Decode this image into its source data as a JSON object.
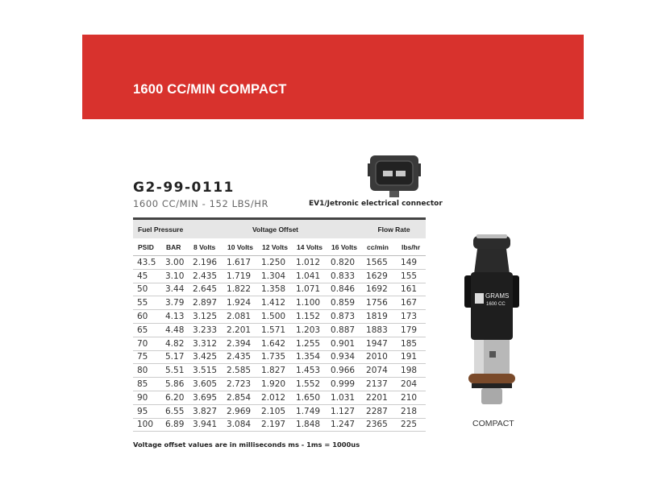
{
  "banner": {
    "title": "1600 CC/MIN COMPACT",
    "color": "#d8322d"
  },
  "product": {
    "part_number": "G2-99-0111",
    "spec": "1600 CC/MIN - 152 LBS/HR"
  },
  "connector": {
    "label": "EV1/Jetronic electrical connector",
    "icon": "ev1-connector-icon"
  },
  "table": {
    "groups": [
      "Fuel Pressure",
      "Voltage Offset",
      "Flow Rate"
    ],
    "headers": [
      "PSID",
      "BAR",
      "8 Volts",
      "10 Volts",
      "12 Volts",
      "14 Volts",
      "16 Volts",
      "cc/min",
      "lbs/hr"
    ],
    "rows": [
      [
        "43.5",
        "3.00",
        "2.196",
        "1.617",
        "1.250",
        "1.012",
        "0.820",
        "1565",
        "149"
      ],
      [
        "45",
        "3.10",
        "2.435",
        "1.719",
        "1.304",
        "1.041",
        "0.833",
        "1629",
        "155"
      ],
      [
        "50",
        "3.44",
        "2.645",
        "1.822",
        "1.358",
        "1.071",
        "0.846",
        "1692",
        "161"
      ],
      [
        "55",
        "3.79",
        "2.897",
        "1.924",
        "1.412",
        "1.100",
        "0.859",
        "1756",
        "167"
      ],
      [
        "60",
        "4.13",
        "3.125",
        "2.081",
        "1.500",
        "1.152",
        "0.873",
        "1819",
        "173"
      ],
      [
        "65",
        "4.48",
        "3.233",
        "2.201",
        "1.571",
        "1.203",
        "0.887",
        "1883",
        "179"
      ],
      [
        "70",
        "4.82",
        "3.312",
        "2.394",
        "1.642",
        "1.255",
        "0.901",
        "1947",
        "185"
      ],
      [
        "75",
        "5.17",
        "3.425",
        "2.435",
        "1.735",
        "1.354",
        "0.934",
        "2010",
        "191"
      ],
      [
        "80",
        "5.51",
        "3.515",
        "2.585",
        "1.827",
        "1.453",
        "0.966",
        "2074",
        "198"
      ],
      [
        "85",
        "5.86",
        "3.605",
        "2.723",
        "1.920",
        "1.552",
        "0.999",
        "2137",
        "204"
      ],
      [
        "90",
        "6.20",
        "3.695",
        "2.854",
        "2.012",
        "1.650",
        "1.031",
        "2201",
        "210"
      ],
      [
        "95",
        "6.55",
        "3.827",
        "2.969",
        "2.105",
        "1.749",
        "1.127",
        "2287",
        "218"
      ],
      [
        "100",
        "6.89",
        "3.941",
        "3.084",
        "2.197",
        "1.848",
        "1.247",
        "2365",
        "225"
      ]
    ]
  },
  "note": "Voltage offset values are in milliseconds ms - 1ms = 1000us",
  "injector": {
    "label": "COMPACT",
    "brand": "GRAMS",
    "body_text": "1600 CC"
  }
}
